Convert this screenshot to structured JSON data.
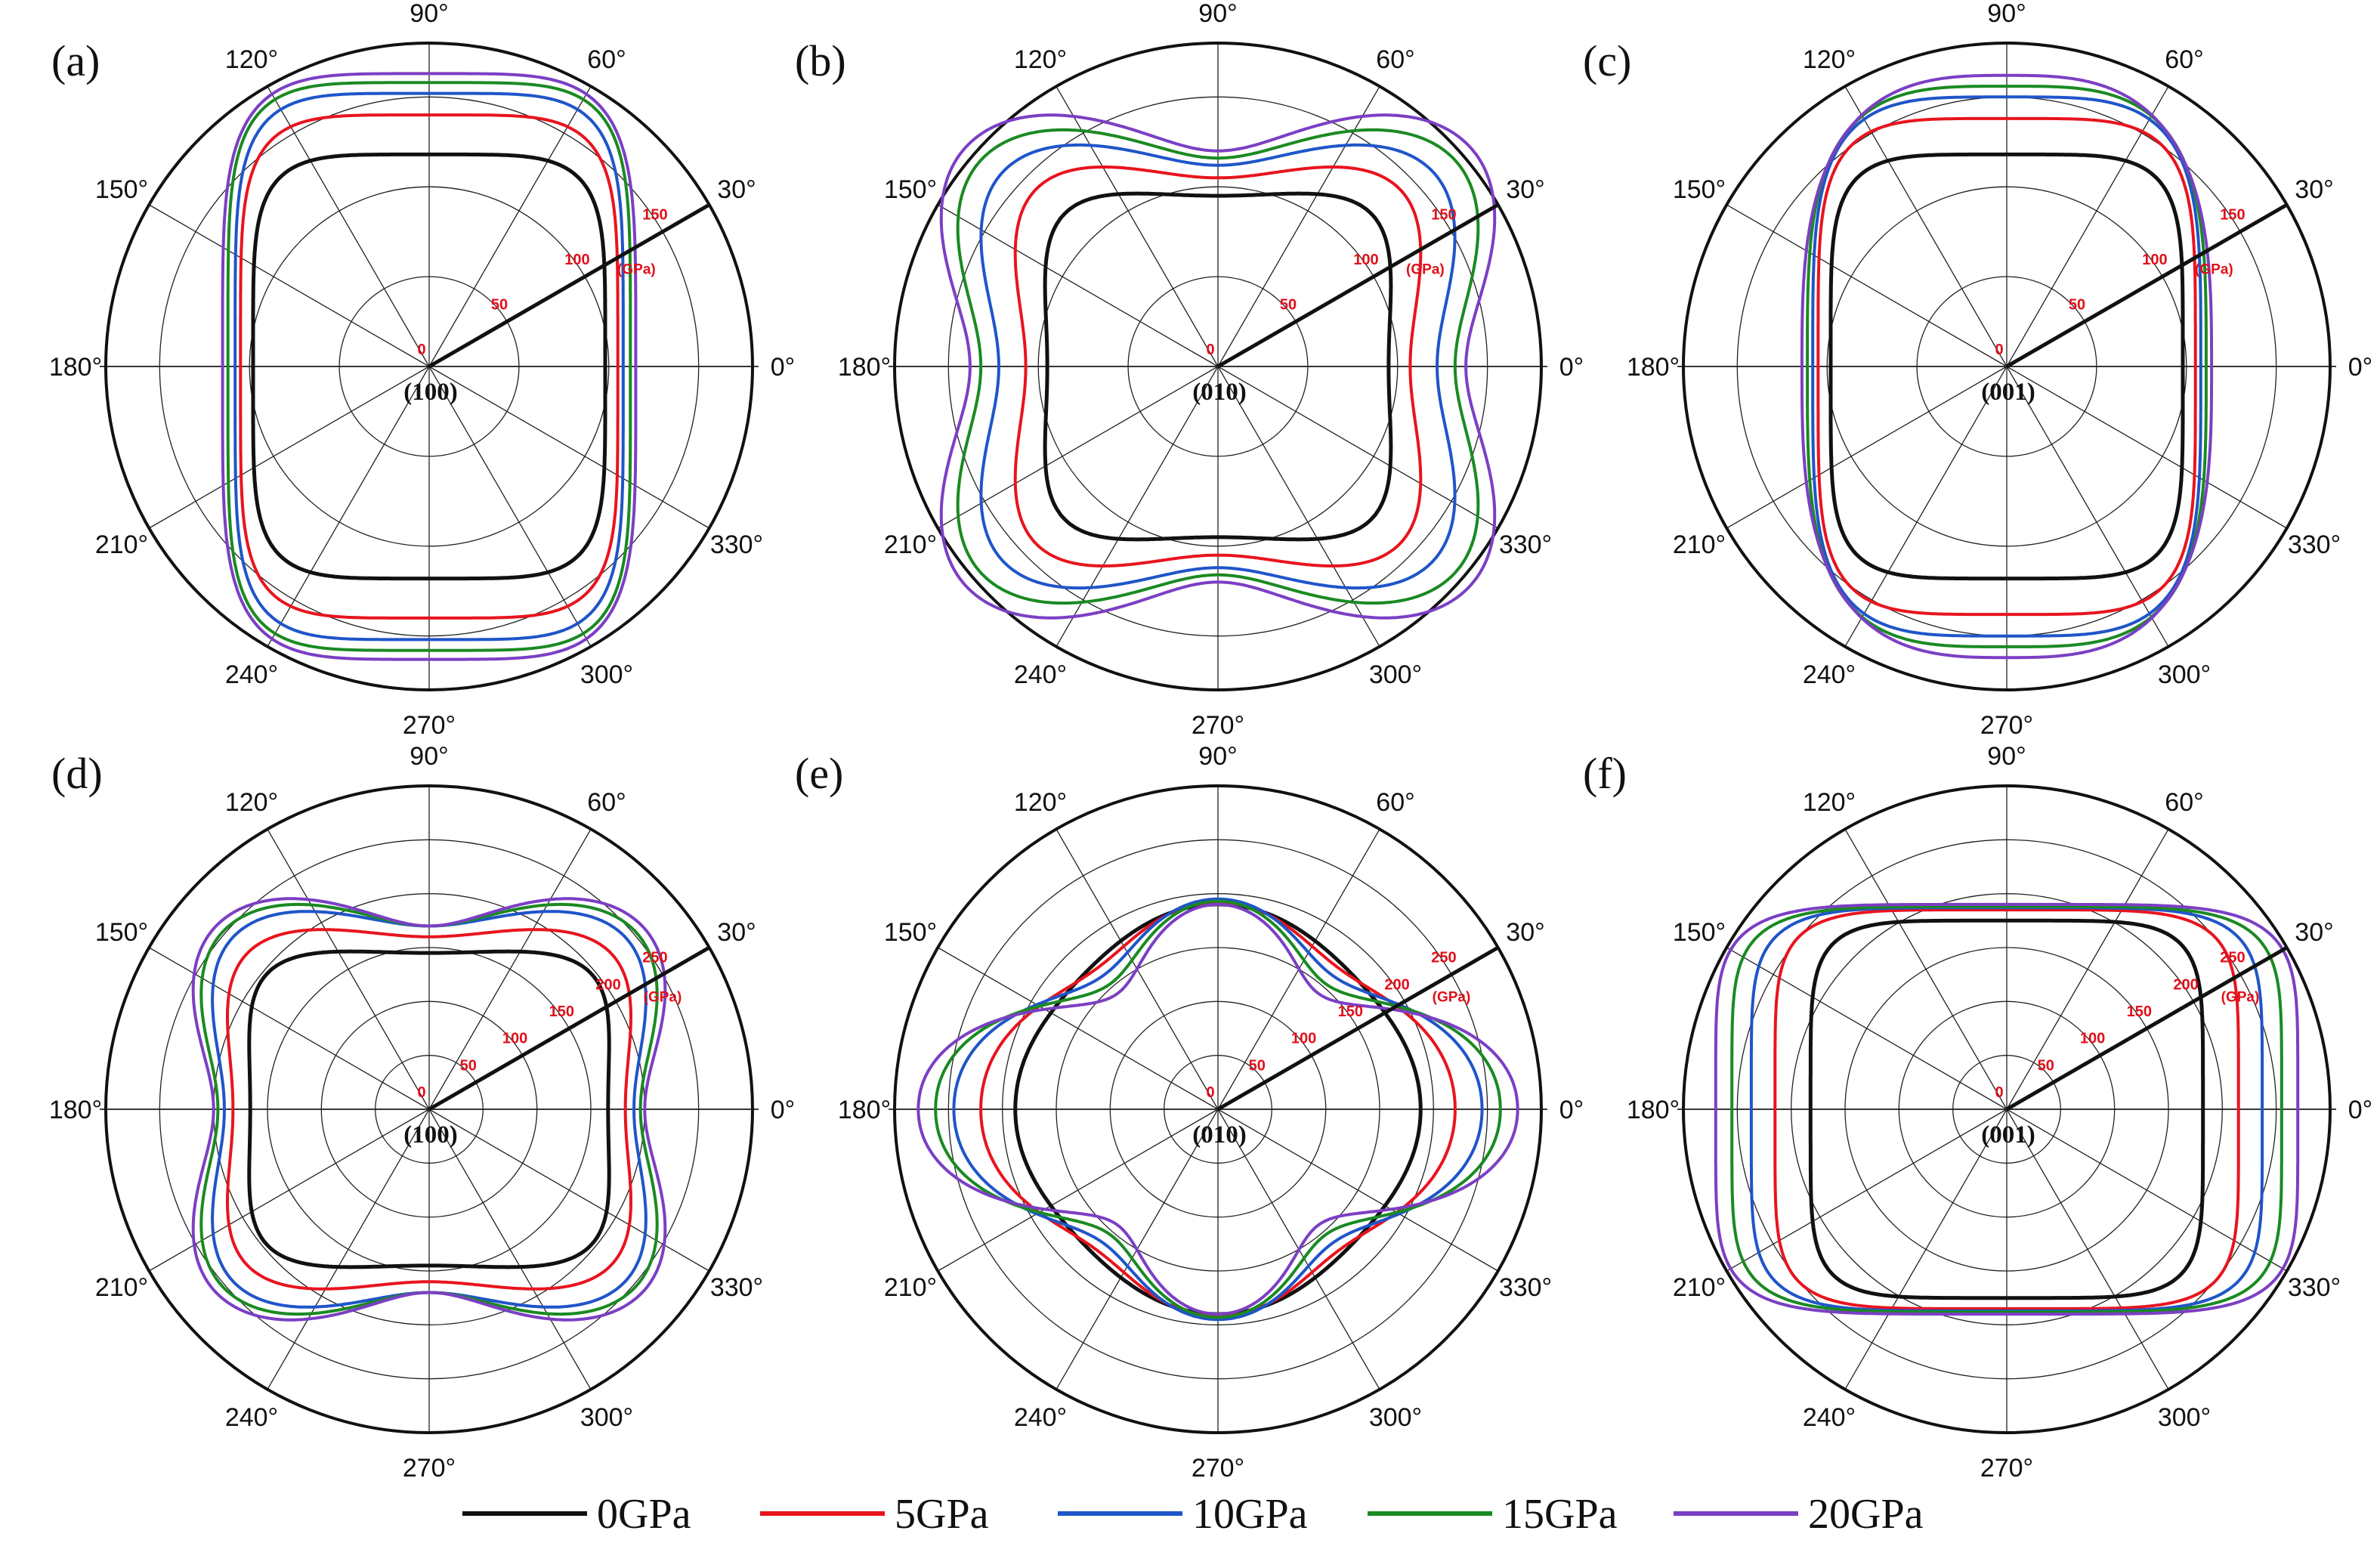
{
  "chart_data": {
    "type": "polar",
    "legend": {
      "placement": "bottom",
      "entries": [
        {
          "name": "0GPa",
          "color": "#111111"
        },
        {
          "name": "5GPa",
          "color": "#e8141e"
        },
        {
          "name": "10GPa",
          "color": "#1f55c9"
        },
        {
          "name": "15GPa",
          "color": "#1a8a22"
        },
        {
          "name": "20GPa",
          "color": "#7b3fc4"
        }
      ]
    },
    "angle_labels": [
      "0°",
      "30°",
      "60°",
      "90°",
      "120°",
      "150°",
      "180°",
      "210°",
      "240°",
      "270°",
      "300°",
      "330°"
    ],
    "unit": "(GPa)",
    "panels": [
      {
        "label": "(a)",
        "plane": "(100)",
        "rmax": 180,
        "ticks": [
          0,
          50,
          100,
          150
        ],
        "series": [
          {
            "name": "0GPa",
            "rx": 98,
            "ry": 118,
            "n": 5.0,
            "a4": 0.0
          },
          {
            "name": "5GPa",
            "rx": 105,
            "ry": 140,
            "n": 5.0,
            "a4": 0.0
          },
          {
            "name": "10GPa",
            "rx": 108,
            "ry": 152,
            "n": 5.0,
            "a4": 0.0
          },
          {
            "name": "15GPa",
            "rx": 112,
            "ry": 158,
            "n": 5.0,
            "a4": 0.0
          },
          {
            "name": "20GPa",
            "rx": 115,
            "ry": 163,
            "n": 4.6,
            "a4": 0.0
          }
        ]
      },
      {
        "label": "(b)",
        "plane": "(010)",
        "rmax": 180,
        "ticks": [
          0,
          50,
          100,
          150
        ],
        "series": [
          {
            "name": "0GPa",
            "rx": 95,
            "ry": 95,
            "n": 5.0,
            "a4": 0.03
          },
          {
            "name": "5GPa",
            "rx": 107,
            "ry": 105,
            "n": 4.5,
            "a4": 0.1
          },
          {
            "name": "10GPa",
            "rx": 122,
            "ry": 112,
            "n": 4.0,
            "a4": 0.16
          },
          {
            "name": "15GPa",
            "rx": 132,
            "ry": 116,
            "n": 3.6,
            "a4": 0.21
          },
          {
            "name": "20GPa",
            "rx": 138,
            "ry": 120,
            "n": 3.3,
            "a4": 0.26
          }
        ]
      },
      {
        "label": "(c)",
        "plane": "(001)",
        "rmax": 180,
        "ticks": [
          0,
          50,
          100,
          150
        ],
        "series": [
          {
            "name": "0GPa",
            "rx": 98,
            "ry": 118,
            "n": 5.0,
            "a4": 0.0
          },
          {
            "name": "5GPa",
            "rx": 105,
            "ry": 138,
            "n": 4.6,
            "a4": 0.0
          },
          {
            "name": "10GPa",
            "rx": 108,
            "ry": 150,
            "n": 4.0,
            "a4": 0.0
          },
          {
            "name": "15GPa",
            "rx": 111,
            "ry": 156,
            "n": 3.5,
            "a4": 0.0
          },
          {
            "name": "20GPa",
            "rx": 114,
            "ry": 162,
            "n": 3.0,
            "a4": 0.0
          }
        ]
      },
      {
        "label": "(d)",
        "plane": "(100)",
        "rmax": 300,
        "ticks": [
          0,
          50,
          100,
          150,
          200,
          250
        ],
        "series": [
          {
            "name": "0GPa",
            "rx": 166,
            "ry": 145,
            "n": 5.0,
            "a4": 0.02
          },
          {
            "name": "5GPa",
            "rx": 182,
            "ry": 160,
            "n": 4.5,
            "a4": 0.07
          },
          {
            "name": "10GPa",
            "rx": 190,
            "ry": 170,
            "n": 4.0,
            "a4": 0.13
          },
          {
            "name": "15GPa",
            "rx": 196,
            "ry": 170,
            "n": 3.5,
            "a4": 0.19
          },
          {
            "name": "20GPa",
            "rx": 200,
            "ry": 170,
            "n": 3.2,
            "a4": 0.24
          }
        ]
      },
      {
        "label": "(e)",
        "plane": "(010)",
        "rmax": 300,
        "ticks": [
          0,
          50,
          100,
          150,
          200,
          250
        ],
        "series": [
          {
            "name": "0GPa",
            "rx": 188,
            "ry": 190,
            "n": 3.2,
            "a4": -0.18
          },
          {
            "name": "5GPa",
            "rx": 220,
            "ry": 192,
            "n": 3.0,
            "a4": -0.24
          },
          {
            "name": "10GPa",
            "rx": 245,
            "ry": 195,
            "n": 2.8,
            "a4": -0.3
          },
          {
            "name": "15GPa",
            "rx": 262,
            "ry": 193,
            "n": 2.6,
            "a4": -0.34
          },
          {
            "name": "20GPa",
            "rx": 278,
            "ry": 190,
            "n": 2.4,
            "a4": -0.38
          }
        ]
      },
      {
        "label": "(f)",
        "plane": "(001)",
        "rmax": 300,
        "ticks": [
          0,
          50,
          100,
          150,
          200,
          250
        ],
        "series": [
          {
            "name": "0GPa",
            "rx": 182,
            "ry": 175,
            "n": 5.5,
            "a4": 0.0
          },
          {
            "name": "5GPa",
            "rx": 215,
            "ry": 185,
            "n": 5.5,
            "a4": 0.0
          },
          {
            "name": "10GPa",
            "rx": 237,
            "ry": 187,
            "n": 5.5,
            "a4": 0.0
          },
          {
            "name": "15GPa",
            "rx": 255,
            "ry": 188,
            "n": 5.5,
            "a4": 0.0
          },
          {
            "name": "20GPa",
            "rx": 270,
            "ry": 190,
            "n": 5.5,
            "a4": 0.0
          }
        ]
      }
    ]
  }
}
